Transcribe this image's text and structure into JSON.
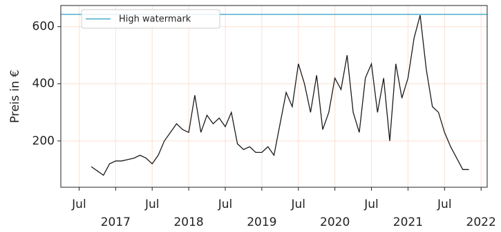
{
  "chart_data": {
    "type": "line",
    "ylabel": "Preis in €",
    "x": [
      "2016-09",
      "2016-10",
      "2016-11",
      "2016-12",
      "2017-01",
      "2017-02",
      "2017-03",
      "2017-04",
      "2017-05",
      "2017-06",
      "2017-07",
      "2017-08",
      "2017-09",
      "2017-10",
      "2017-11",
      "2017-12",
      "2018-01",
      "2018-02",
      "2018-03",
      "2018-04",
      "2018-05",
      "2018-06",
      "2018-07",
      "2018-08",
      "2018-09",
      "2018-10",
      "2018-11",
      "2018-12",
      "2019-01",
      "2019-02",
      "2019-03",
      "2019-04",
      "2019-05",
      "2019-06",
      "2019-07",
      "2019-08",
      "2019-09",
      "2019-10",
      "2019-11",
      "2019-12",
      "2020-01",
      "2020-02",
      "2020-03",
      "2020-04",
      "2020-05",
      "2020-06",
      "2020-07",
      "2020-08",
      "2020-09",
      "2020-10",
      "2020-11",
      "2020-12",
      "2021-01",
      "2021-02",
      "2021-03",
      "2021-04",
      "2021-05",
      "2021-06",
      "2021-07",
      "2021-08",
      "2021-09",
      "2021-10",
      "2021-11"
    ],
    "series": [
      {
        "color": "#1a1a1a",
        "values": [
          110,
          95,
          80,
          120,
          130,
          130,
          135,
          140,
          150,
          140,
          120,
          150,
          200,
          230,
          260,
          240,
          230,
          360,
          230,
          290,
          260,
          280,
          250,
          300,
          190,
          170,
          180,
          160,
          160,
          180,
          150,
          260,
          370,
          320,
          470,
          400,
          300,
          430,
          240,
          300,
          420,
          380,
          500,
          300,
          230,
          420,
          470,
          300,
          420,
          200,
          470,
          350,
          420,
          560,
          640,
          450,
          320,
          300,
          230,
          180,
          140,
          100,
          100
        ]
      }
    ],
    "watermark": {
      "name": "High watermark",
      "value": 643,
      "color": "#2a9dc4"
    },
    "xlim": [
      "2016-04",
      "2022-02"
    ],
    "xticks": [
      {
        "value": "2016-07",
        "label": "Jul"
      },
      {
        "value": "2017-01",
        "label": "2017"
      },
      {
        "value": "2017-07",
        "label": "Jul"
      },
      {
        "value": "2018-01",
        "label": "2018"
      },
      {
        "value": "2018-07",
        "label": "Jul"
      },
      {
        "value": "2019-01",
        "label": "2019"
      },
      {
        "value": "2019-07",
        "label": "Jul"
      },
      {
        "value": "2020-01",
        "label": "2020"
      },
      {
        "value": "2020-07",
        "label": "Jul"
      },
      {
        "value": "2021-01",
        "label": "2021"
      },
      {
        "value": "2021-07",
        "label": "Jul"
      },
      {
        "value": "2022-01",
        "label": "2022"
      }
    ],
    "ylim": [
      38,
      674
    ],
    "yticks": [
      200,
      400,
      600
    ],
    "grid": true,
    "grid_color": "#fbe0d4",
    "legend": "upper left"
  }
}
